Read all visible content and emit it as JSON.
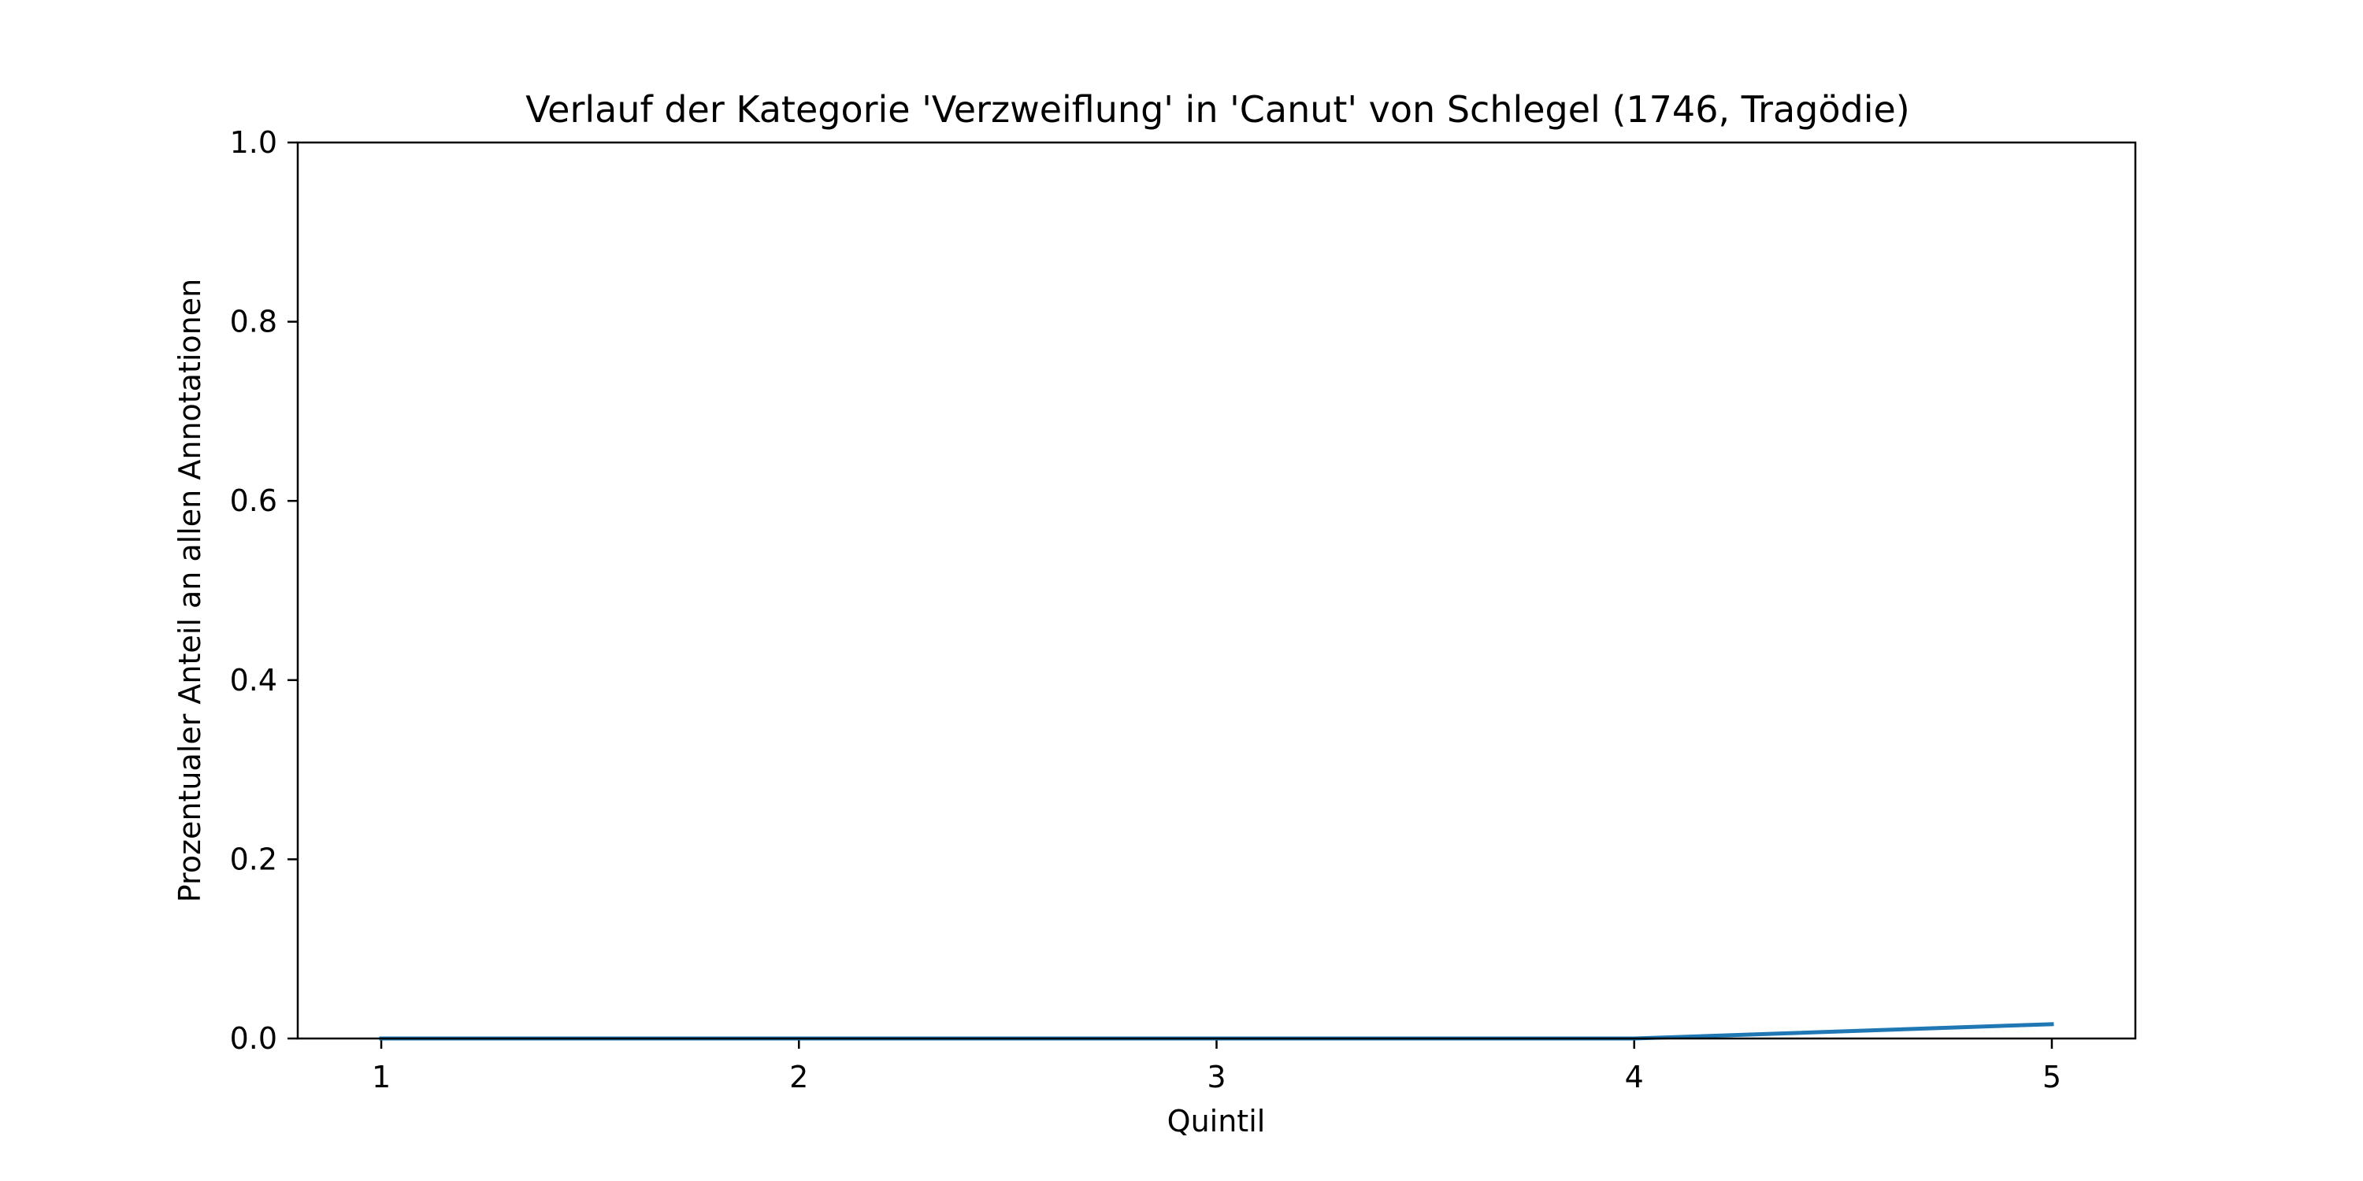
{
  "chart_data": {
    "type": "line",
    "title": "Verlauf der Kategorie 'Verzweiflung' in 'Canut' von Schlegel (1746, Tragödie)",
    "xlabel": "Quintil",
    "ylabel": "Prozentualer Anteil an allen Annotationen",
    "x": [
      1,
      2,
      3,
      4,
      5
    ],
    "series": [
      {
        "values": [
          0.0,
          0.0,
          0.0,
          0.0,
          0.016
        ],
        "color": "#1f77b4"
      }
    ],
    "xlim": [
      0.8,
      5.2
    ],
    "ylim": [
      0.0,
      1.0
    ],
    "x_ticks": [
      "1",
      "2",
      "3",
      "4",
      "5"
    ],
    "y_ticks": [
      "0.0",
      "0.2",
      "0.4",
      "0.6",
      "0.8",
      "1.0"
    ],
    "grid": false,
    "legend": "none"
  }
}
